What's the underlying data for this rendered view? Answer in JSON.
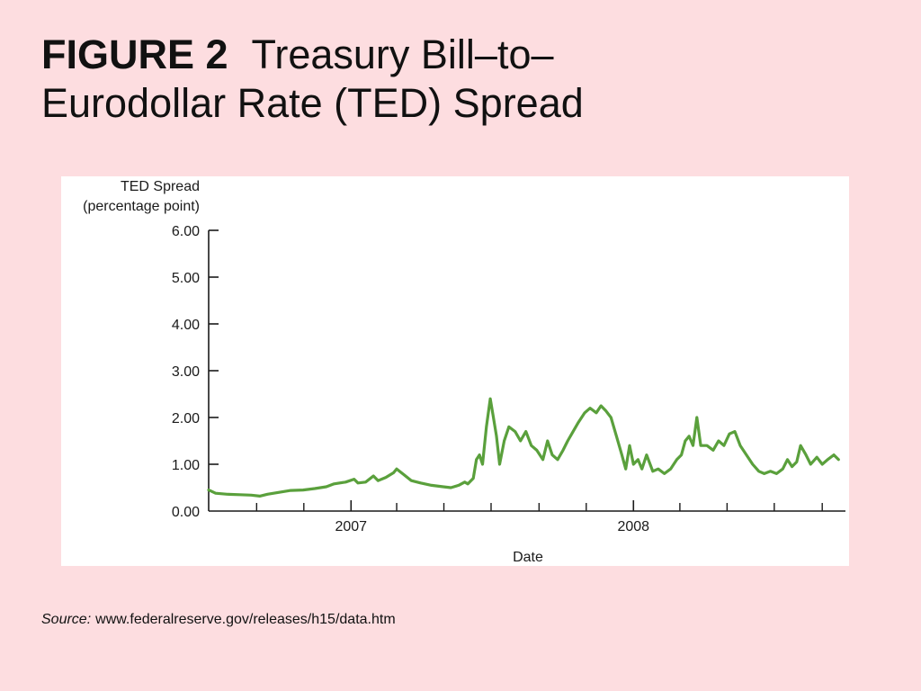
{
  "slide": {
    "figure_label": "FIGURE 2",
    "title_line1": "Treasury Bill–to–",
    "title_line2": "Eurodollar Rate (TED) Spread",
    "source_label": "Source:",
    "source_text": "www.federalreserve.gov/releases/h15/data.htm"
  },
  "colors": {
    "background": "#fddde0",
    "series": "#5aa03c",
    "axis": "#1a1a1a"
  },
  "chart_data": {
    "type": "line",
    "ylabel_line1": "TED Spread",
    "ylabel_line2": "(percentage point)",
    "xlabel": "Date",
    "ylim": [
      0,
      6
    ],
    "xlim": [
      "2006-07-01",
      "2008-10-01"
    ],
    "yticks": [
      "6.00",
      "5.00",
      "4.00",
      "3.00",
      "2.00",
      "1.00",
      "0.00"
    ],
    "ytick_values": [
      6,
      5,
      4,
      3,
      2,
      1,
      0
    ],
    "xtick_labels": [
      "2007",
      "2008"
    ],
    "xtick_dates": [
      "2007-01-01",
      "2008-01-01"
    ],
    "minor_tick_dates": [
      "2006-09-01",
      "2006-11-01",
      "2007-03-01",
      "2007-05-01",
      "2007-07-01",
      "2007-09-01",
      "2007-11-01",
      "2008-03-01",
      "2008-05-01",
      "2008-07-01",
      "2008-09-01"
    ],
    "grid": false,
    "legend": "none",
    "series": [
      {
        "points": [
          [
            "2006-07-01",
            0.45
          ],
          [
            "2006-07-10",
            0.38
          ],
          [
            "2006-07-25",
            0.36
          ],
          [
            "2006-08-10",
            0.35
          ],
          [
            "2006-08-25",
            0.34
          ],
          [
            "2006-09-05",
            0.32
          ],
          [
            "2006-09-15",
            0.36
          ],
          [
            "2006-09-30",
            0.4
          ],
          [
            "2006-10-15",
            0.44
          ],
          [
            "2006-10-31",
            0.45
          ],
          [
            "2006-11-15",
            0.48
          ],
          [
            "2006-11-30",
            0.52
          ],
          [
            "2006-12-10",
            0.58
          ],
          [
            "2006-12-25",
            0.62
          ],
          [
            "2007-01-05",
            0.68
          ],
          [
            "2007-01-10",
            0.6
          ],
          [
            "2007-01-20",
            0.62
          ],
          [
            "2007-01-30",
            0.75
          ],
          [
            "2007-02-05",
            0.65
          ],
          [
            "2007-02-15",
            0.72
          ],
          [
            "2007-02-25",
            0.82
          ],
          [
            "2007-03-01",
            0.9
          ],
          [
            "2007-03-10",
            0.78
          ],
          [
            "2007-03-20",
            0.65
          ],
          [
            "2007-04-01",
            0.6
          ],
          [
            "2007-04-15",
            0.55
          ],
          [
            "2007-04-30",
            0.52
          ],
          [
            "2007-05-10",
            0.5
          ],
          [
            "2007-05-20",
            0.55
          ],
          [
            "2007-05-28",
            0.62
          ],
          [
            "2007-06-01",
            0.58
          ],
          [
            "2007-06-08",
            0.7
          ],
          [
            "2007-06-12",
            1.1
          ],
          [
            "2007-06-16",
            1.2
          ],
          [
            "2007-06-20",
            1.0
          ],
          [
            "2007-06-25",
            1.8
          ],
          [
            "2007-06-30",
            2.4
          ],
          [
            "2007-07-04",
            2.0
          ],
          [
            "2007-07-08",
            1.6
          ],
          [
            "2007-07-12",
            1.0
          ],
          [
            "2007-07-18",
            1.5
          ],
          [
            "2007-07-24",
            1.8
          ],
          [
            "2007-08-01",
            1.7
          ],
          [
            "2007-08-08",
            1.5
          ],
          [
            "2007-08-15",
            1.7
          ],
          [
            "2007-08-22",
            1.4
          ],
          [
            "2007-08-29",
            1.3
          ],
          [
            "2007-09-06",
            1.1
          ],
          [
            "2007-09-12",
            1.5
          ],
          [
            "2007-09-18",
            1.2
          ],
          [
            "2007-09-25",
            1.1
          ],
          [
            "2007-10-02",
            1.3
          ],
          [
            "2007-10-08",
            1.5
          ],
          [
            "2007-10-15",
            1.7
          ],
          [
            "2007-10-22",
            1.9
          ],
          [
            "2007-10-30",
            2.1
          ],
          [
            "2007-11-06",
            2.2
          ],
          [
            "2007-11-14",
            2.1
          ],
          [
            "2007-11-20",
            2.25
          ],
          [
            "2007-11-26",
            2.15
          ],
          [
            "2007-12-03",
            2.0
          ],
          [
            "2007-12-10",
            1.6
          ],
          [
            "2007-12-17",
            1.2
          ],
          [
            "2007-12-22",
            0.9
          ],
          [
            "2007-12-27",
            1.4
          ],
          [
            "2008-01-01",
            1.0
          ],
          [
            "2008-01-07",
            1.1
          ],
          [
            "2008-01-12",
            0.9
          ],
          [
            "2008-01-18",
            1.2
          ],
          [
            "2008-01-26",
            0.85
          ],
          [
            "2008-02-02",
            0.9
          ],
          [
            "2008-02-10",
            0.8
          ],
          [
            "2008-02-18",
            0.9
          ],
          [
            "2008-02-26",
            1.1
          ],
          [
            "2008-03-03",
            1.2
          ],
          [
            "2008-03-08",
            1.5
          ],
          [
            "2008-03-13",
            1.6
          ],
          [
            "2008-03-18",
            1.4
          ],
          [
            "2008-03-23",
            2.0
          ],
          [
            "2008-03-28",
            1.4
          ],
          [
            "2008-04-05",
            1.4
          ],
          [
            "2008-04-13",
            1.3
          ],
          [
            "2008-04-20",
            1.5
          ],
          [
            "2008-04-27",
            1.4
          ],
          [
            "2008-05-04",
            1.65
          ],
          [
            "2008-05-11",
            1.7
          ],
          [
            "2008-05-18",
            1.4
          ],
          [
            "2008-05-26",
            1.2
          ],
          [
            "2008-06-03",
            1.0
          ],
          [
            "2008-06-11",
            0.85
          ],
          [
            "2008-06-18",
            0.8
          ],
          [
            "2008-06-26",
            0.85
          ],
          [
            "2008-07-04",
            0.8
          ],
          [
            "2008-07-12",
            0.9
          ],
          [
            "2008-07-18",
            1.1
          ],
          [
            "2008-07-24",
            0.95
          ],
          [
            "2008-07-30",
            1.05
          ],
          [
            "2008-08-04",
            1.4
          ],
          [
            "2008-08-11",
            1.2
          ],
          [
            "2008-08-17",
            1.0
          ],
          [
            "2008-08-25",
            1.15
          ],
          [
            "2008-09-01",
            1.0
          ],
          [
            "2008-09-08",
            1.1
          ],
          [
            "2008-09-16",
            1.2
          ],
          [
            "2008-09-22",
            1.1
          ]
        ]
      }
    ]
  }
}
